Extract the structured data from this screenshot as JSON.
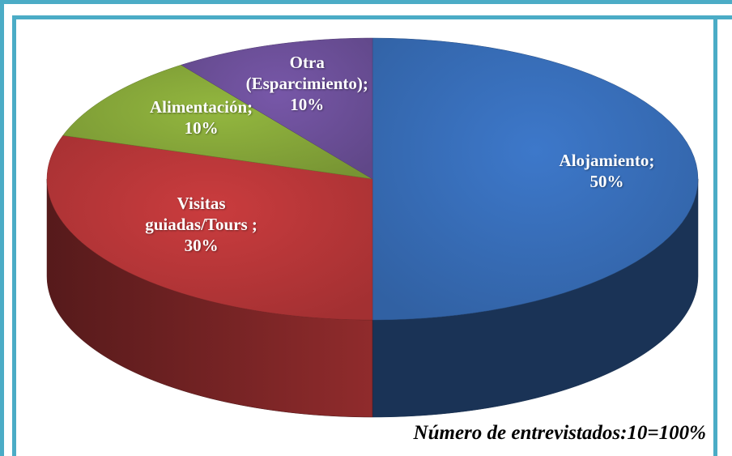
{
  "chart_data": {
    "type": "pie",
    "values": [
      50,
      30,
      10,
      10
    ],
    "value_labels": [
      "Alojamiento; 50%",
      "Visitas guiadas/Tours ; 30%",
      "Alimentación; 10%",
      "Otra (Esparcimiento); 10%"
    ],
    "colors": [
      "#3a72c0",
      "#c0393b",
      "#8cae3c",
      "#7153a0"
    ],
    "footnote": "Número de entrevistados:10=100%"
  }
}
